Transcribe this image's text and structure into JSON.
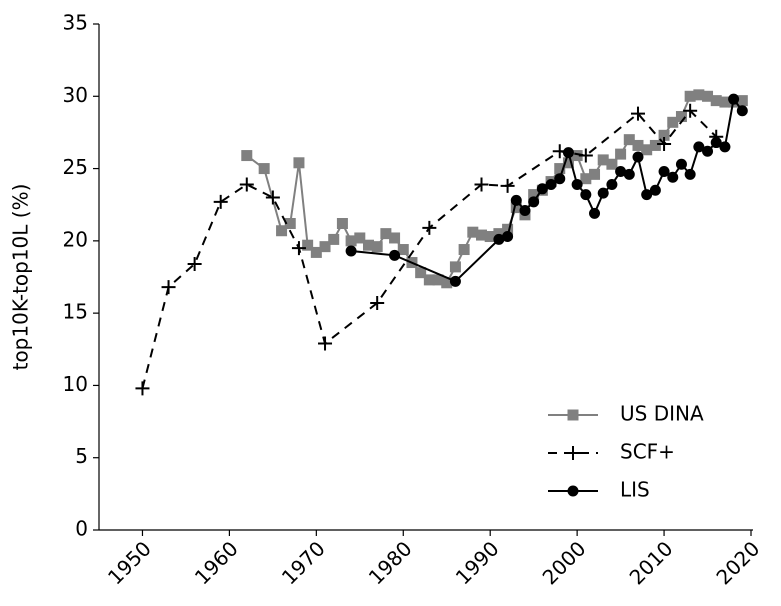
{
  "chart_data": {
    "type": "line",
    "ylabel": "top10K-top10L (%)",
    "xlim": [
      1945,
      2020
    ],
    "xticks": [
      1950,
      1960,
      1970,
      1980,
      1990,
      2000,
      2010,
      2020
    ],
    "ylim": [
      0,
      35
    ],
    "yticks": [
      0,
      5,
      10,
      15,
      20,
      25,
      30,
      35
    ],
    "legend": "lower right",
    "series": [
      {
        "name": "US DINA",
        "color": "#808080",
        "marker": "square",
        "dash": "solid",
        "x": [
          1962,
          1964,
          1966,
          1967,
          1968,
          1969,
          1970,
          1971,
          1972,
          1973,
          1974,
          1975,
          1976,
          1977,
          1978,
          1979,
          1980,
          1981,
          1982,
          1983,
          1984,
          1985,
          1986,
          1987,
          1988,
          1989,
          1990,
          1991,
          1992,
          1993,
          1994,
          1995,
          1996,
          1997,
          1998,
          1999,
          2000,
          2001,
          2002,
          2003,
          2004,
          2005,
          2006,
          2007,
          2008,
          2009,
          2010,
          2011,
          2012,
          2013,
          2014,
          2015,
          2016,
          2017,
          2018,
          2019
        ],
        "values": [
          25.9,
          25.0,
          20.7,
          21.2,
          25.4,
          19.7,
          19.2,
          19.6,
          20.1,
          21.2,
          20.0,
          20.2,
          19.7,
          19.6,
          20.5,
          20.2,
          19.4,
          18.5,
          17.8,
          17.3,
          17.3,
          17.1,
          18.2,
          19.4,
          20.6,
          20.4,
          20.3,
          20.5,
          20.8,
          22.3,
          21.8,
          23.2,
          23.5,
          24.1,
          25.0,
          25.4,
          25.9,
          24.3,
          24.6,
          25.6,
          25.3,
          26.0,
          27.0,
          26.6,
          26.3,
          26.6,
          27.3,
          28.2,
          28.6,
          30.0,
          30.1,
          30.0,
          29.7,
          29.6,
          29.6,
          29.7
        ]
      },
      {
        "name": "SCF+",
        "color": "#000000",
        "marker": "plus",
        "dash": "dashed",
        "x": [
          1950,
          1953,
          1956,
          1959,
          1962,
          1965,
          1968,
          1971,
          1977,
          1983,
          1989,
          1992,
          1998,
          2001,
          2007,
          2010,
          2013,
          2016
        ],
        "values": [
          9.8,
          16.8,
          18.4,
          22.7,
          23.9,
          23.0,
          19.5,
          12.9,
          15.7,
          20.9,
          23.9,
          23.8,
          26.2,
          25.9,
          28.8,
          26.7,
          29.0,
          27.2
        ]
      },
      {
        "name": "LIS",
        "color": "#000000",
        "marker": "circle",
        "dash": "solid",
        "x": [
          1974,
          1979,
          1986,
          1991,
          1992,
          1993,
          1994,
          1995,
          1996,
          1997,
          1998,
          1999,
          2000,
          2001,
          2002,
          2003,
          2004,
          2005,
          2006,
          2007,
          2008,
          2009,
          2010,
          2011,
          2012,
          2013,
          2014,
          2015,
          2016,
          2017,
          2018,
          2019
        ],
        "values": [
          19.3,
          19.0,
          17.2,
          20.1,
          20.3,
          22.8,
          22.1,
          22.7,
          23.6,
          23.9,
          24.3,
          26.1,
          23.9,
          23.2,
          21.9,
          23.3,
          23.9,
          24.8,
          24.6,
          25.8,
          23.2,
          23.5,
          24.8,
          24.4,
          25.3,
          24.6,
          26.5,
          26.2,
          26.8,
          26.5,
          29.8,
          29.0
        ]
      }
    ]
  }
}
